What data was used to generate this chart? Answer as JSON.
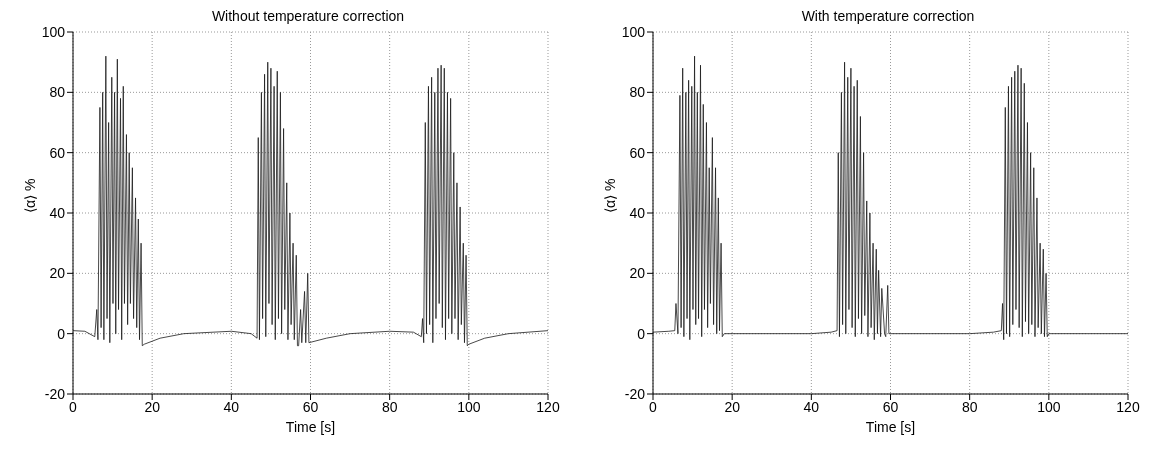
{
  "chart_data": [
    {
      "type": "line",
      "title": "Without temperature correction",
      "xlabel": "Time [s]",
      "ylabel": "⟨α⟩ %",
      "xlim": [
        0,
        120
      ],
      "ylim": [
        -20,
        100
      ],
      "xticks": [
        0,
        20,
        40,
        60,
        80,
        100,
        120
      ],
      "yticks": [
        -20,
        0,
        20,
        40,
        60,
        80,
        100
      ],
      "grid": true,
      "x": [
        0,
        3,
        5.5,
        6,
        6.3,
        6.8,
        7.1,
        7.5,
        7.8,
        8.3,
        8.6,
        9,
        9.3,
        9.8,
        10.1,
        10.5,
        10.8,
        11.2,
        11.5,
        12,
        12.3,
        12.7,
        13,
        13.5,
        13.8,
        14.2,
        14.5,
        15,
        15.3,
        15.8,
        16.1,
        16.5,
        16.8,
        17.2,
        17.5,
        18,
        22,
        28,
        40,
        45,
        46.5,
        46.8,
        47.1,
        47.6,
        47.9,
        48.4,
        48.7,
        49.2,
        49.5,
        50,
        50.3,
        50.8,
        51.1,
        51.6,
        51.9,
        52.4,
        52.7,
        53.2,
        53.5,
        54,
        54.3,
        54.8,
        55.1,
        55.6,
        55.9,
        56.4,
        56.7,
        57,
        57.5,
        57.8,
        58.5,
        58.8,
        59.3,
        59.6,
        64,
        70,
        80,
        86,
        88,
        88.3,
        88.6,
        89,
        89.3,
        89.8,
        90.1,
        90.6,
        90.9,
        91.4,
        91.7,
        92.2,
        92.5,
        93,
        93.3,
        93.8,
        94.1,
        94.6,
        94.9,
        95.4,
        95.7,
        96.2,
        96.5,
        97,
        97.3,
        97.8,
        98.1,
        98.6,
        98.9,
        99.3,
        99.6,
        100,
        104,
        110,
        120
      ],
      "series": [
        {
          "color": "#1a1a1a",
          "values": [
            1,
            0.8,
            -1,
            8,
            -2,
            75,
            2,
            80,
            -2,
            92,
            5,
            70,
            -3,
            85,
            10,
            80,
            0,
            91,
            8,
            78,
            -2,
            82,
            10,
            66,
            3,
            60,
            10,
            55,
            5,
            45,
            2,
            38,
            -2,
            30,
            -4,
            -3.5,
            -1.5,
            0,
            0.8,
            0,
            -1.5,
            65,
            -2,
            80,
            5,
            86,
            -1,
            90,
            10,
            88,
            3,
            82,
            -2,
            87,
            5,
            80,
            0,
            68,
            8,
            50,
            -2,
            40,
            3,
            30,
            -2,
            26,
            -4,
            -4,
            8,
            -3,
            14,
            -3,
            20,
            -3,
            -1.5,
            0,
            0.8,
            0.5,
            -1,
            5,
            -3,
            70,
            0,
            82,
            3,
            85,
            -3,
            80,
            5,
            88,
            10,
            89,
            2,
            88,
            -2,
            80,
            5,
            78,
            0,
            60,
            5,
            50,
            -2,
            42,
            3,
            30,
            -3,
            26,
            -4,
            -3.5,
            -1.5,
            0,
            1
          ]
        }
      ]
    },
    {
      "type": "line",
      "title": "With temperature correction",
      "xlabel": "Time [s]",
      "ylabel": "⟨α⟩ %",
      "xlim": [
        0,
        120
      ],
      "ylim": [
        -20,
        100
      ],
      "xticks": [
        0,
        20,
        40,
        60,
        80,
        100,
        120
      ],
      "yticks": [
        -20,
        0,
        20,
        40,
        60,
        80,
        100
      ],
      "grid": true,
      "x": [
        0,
        4,
        5.5,
        5.8,
        6.3,
        6.8,
        7.1,
        7.5,
        7.8,
        8.3,
        8.6,
        9,
        9.3,
        9.8,
        10.1,
        10.5,
        10.8,
        11.2,
        11.5,
        12,
        12.3,
        12.7,
        13,
        13.5,
        13.8,
        14.2,
        14.5,
        15,
        15.3,
        15.8,
        16.1,
        16.5,
        16.8,
        17.2,
        17.5,
        18,
        25,
        40,
        45,
        46.5,
        46.8,
        47.1,
        47.6,
        47.9,
        48.4,
        48.7,
        49.2,
        49.5,
        50,
        50.3,
        50.8,
        51.1,
        51.6,
        51.9,
        52.4,
        52.7,
        53.2,
        53.5,
        54,
        54.3,
        54.8,
        55.1,
        55.6,
        55.9,
        56.4,
        56.7,
        57,
        57.5,
        57.8,
        58.5,
        58.8,
        59.3,
        59.6,
        60,
        70,
        80,
        86,
        88,
        88.3,
        88.6,
        89,
        89.3,
        89.8,
        90.1,
        90.6,
        90.9,
        91.4,
        91.7,
        92.2,
        92.5,
        93,
        93.3,
        93.8,
        94.1,
        94.6,
        94.9,
        95.4,
        95.7,
        96.2,
        96.5,
        97,
        97.3,
        97.8,
        98.1,
        98.6,
        98.9,
        99.3,
        99.6,
        100,
        110,
        120
      ],
      "series": [
        {
          "color": "#1a1a1a",
          "values": [
            0.5,
            0.8,
            1,
            10,
            0,
            79,
            2,
            88,
            -1,
            80,
            5,
            84,
            -2,
            82,
            8,
            92,
            3,
            80,
            5,
            89,
            -1,
            76,
            8,
            70,
            2,
            55,
            10,
            65,
            3,
            55,
            0,
            45,
            1,
            30,
            -1,
            0,
            0,
            0,
            0.5,
            1,
            60,
            -1,
            80,
            3,
            90,
            0,
            85,
            8,
            88,
            2,
            82,
            -1,
            84,
            5,
            72,
            0,
            60,
            6,
            44,
            -1,
            40,
            2,
            30,
            -2,
            28,
            0,
            21,
            -1,
            15,
            0,
            -1,
            16,
            0,
            0,
            0,
            0,
            0.5,
            1,
            10,
            -2,
            75,
            0,
            82,
            -1,
            85,
            3,
            87,
            8,
            89,
            2,
            88,
            -1,
            83,
            4,
            70,
            0,
            60,
            3,
            55,
            -1,
            45,
            2,
            30,
            0,
            28,
            -1,
            20,
            -1,
            0,
            0,
            0
          ]
        }
      ]
    }
  ]
}
